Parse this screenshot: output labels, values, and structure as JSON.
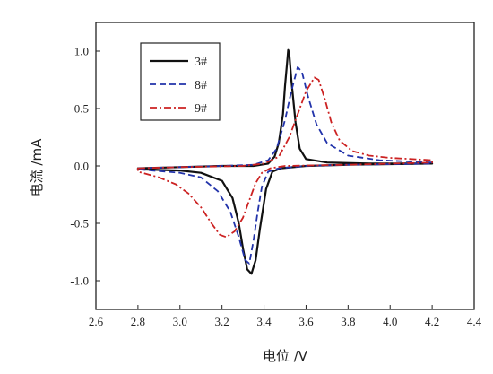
{
  "chart_data": {
    "type": "line",
    "title": "",
    "xlabel": "电位 /V",
    "ylabel": "电流 /mA",
    "xlim": [
      2.6,
      4.4
    ],
    "ylim": [
      -1.25,
      1.25
    ],
    "xticks": [
      2.6,
      2.8,
      3.0,
      3.2,
      3.4,
      3.6,
      3.8,
      4.0,
      4.2,
      4.4
    ],
    "yticks": [
      -1.0,
      -0.5,
      0.0,
      0.5,
      1.0
    ],
    "xtick_labels": [
      "2.6",
      "2.8",
      "3.0",
      "3.2",
      "3.4",
      "3.6",
      "3.8",
      "4.0",
      "4.2",
      "4.4"
    ],
    "ytick_labels": [
      "-1.0",
      "-0.5",
      "0.0",
      "0.5",
      "1.0"
    ],
    "grid": false,
    "legend_position": "top-left",
    "series": [
      {
        "name": "3#",
        "color": "#111111",
        "dash": "solid",
        "anodic": [
          [
            2.8,
            -0.02
          ],
          [
            3.0,
            -0.01
          ],
          [
            3.2,
            0.0
          ],
          [
            3.35,
            0.0
          ],
          [
            3.42,
            0.02
          ],
          [
            3.45,
            0.08
          ],
          [
            3.47,
            0.2
          ],
          [
            3.49,
            0.45
          ],
          [
            3.5,
            0.7
          ],
          [
            3.51,
            0.9
          ],
          [
            3.515,
            1.01
          ],
          [
            3.52,
            0.98
          ],
          [
            3.53,
            0.75
          ],
          [
            3.55,
            0.38
          ],
          [
            3.57,
            0.15
          ],
          [
            3.6,
            0.06
          ],
          [
            3.7,
            0.03
          ],
          [
            3.9,
            0.02
          ],
          [
            4.2,
            0.02
          ]
        ],
        "cathodic": [
          [
            4.2,
            0.02
          ],
          [
            3.8,
            0.01
          ],
          [
            3.6,
            0.0
          ],
          [
            3.48,
            -0.02
          ],
          [
            3.44,
            -0.05
          ],
          [
            3.41,
            -0.2
          ],
          [
            3.38,
            -0.55
          ],
          [
            3.36,
            -0.82
          ],
          [
            3.34,
            -0.94
          ],
          [
            3.32,
            -0.9
          ],
          [
            3.3,
            -0.72
          ],
          [
            3.28,
            -0.5
          ],
          [
            3.25,
            -0.28
          ],
          [
            3.2,
            -0.13
          ],
          [
            3.1,
            -0.06
          ],
          [
            3.0,
            -0.04
          ],
          [
            2.8,
            -0.03
          ]
        ]
      },
      {
        "name": "8#",
        "color": "#2233aa",
        "dash": "dashed",
        "anodic": [
          [
            2.8,
            -0.02
          ],
          [
            3.0,
            -0.01
          ],
          [
            3.2,
            0.0
          ],
          [
            3.35,
            0.01
          ],
          [
            3.42,
            0.05
          ],
          [
            3.46,
            0.15
          ],
          [
            3.5,
            0.4
          ],
          [
            3.53,
            0.65
          ],
          [
            3.56,
            0.86
          ],
          [
            3.58,
            0.82
          ],
          [
            3.61,
            0.6
          ],
          [
            3.65,
            0.36
          ],
          [
            3.7,
            0.2
          ],
          [
            3.8,
            0.09
          ],
          [
            3.95,
            0.05
          ],
          [
            4.2,
            0.03
          ]
        ],
        "cathodic": [
          [
            4.2,
            0.02
          ],
          [
            3.8,
            0.01
          ],
          [
            3.6,
            0.0
          ],
          [
            3.47,
            -0.02
          ],
          [
            3.42,
            -0.05
          ],
          [
            3.39,
            -0.18
          ],
          [
            3.37,
            -0.4
          ],
          [
            3.35,
            -0.65
          ],
          [
            3.33,
            -0.85
          ],
          [
            3.31,
            -0.82
          ],
          [
            3.28,
            -0.62
          ],
          [
            3.24,
            -0.4
          ],
          [
            3.18,
            -0.22
          ],
          [
            3.1,
            -0.1
          ],
          [
            3.0,
            -0.06
          ],
          [
            2.8,
            -0.03
          ]
        ]
      },
      {
        "name": "9#",
        "color": "#cc2222",
        "dash": "dashdot",
        "anodic": [
          [
            2.8,
            -0.02
          ],
          [
            3.0,
            -0.01
          ],
          [
            3.3,
            0.0
          ],
          [
            3.4,
            0.02
          ],
          [
            3.47,
            0.08
          ],
          [
            3.52,
            0.25
          ],
          [
            3.56,
            0.45
          ],
          [
            3.6,
            0.65
          ],
          [
            3.64,
            0.77
          ],
          [
            3.66,
            0.75
          ],
          [
            3.69,
            0.58
          ],
          [
            3.72,
            0.38
          ],
          [
            3.76,
            0.22
          ],
          [
            3.82,
            0.13
          ],
          [
            3.9,
            0.09
          ],
          [
            4.0,
            0.07
          ],
          [
            4.2,
            0.05
          ]
        ],
        "cathodic": [
          [
            4.2,
            0.03
          ],
          [
            3.8,
            0.01
          ],
          [
            3.5,
            0.0
          ],
          [
            3.43,
            -0.02
          ],
          [
            3.39,
            -0.06
          ],
          [
            3.36,
            -0.15
          ],
          [
            3.33,
            -0.3
          ],
          [
            3.3,
            -0.45
          ],
          [
            3.26,
            -0.57
          ],
          [
            3.22,
            -0.62
          ],
          [
            3.19,
            -0.6
          ],
          [
            3.15,
            -0.5
          ],
          [
            3.1,
            -0.36
          ],
          [
            3.04,
            -0.24
          ],
          [
            2.98,
            -0.16
          ],
          [
            2.9,
            -0.1
          ],
          [
            2.8,
            -0.05
          ]
        ]
      }
    ]
  }
}
